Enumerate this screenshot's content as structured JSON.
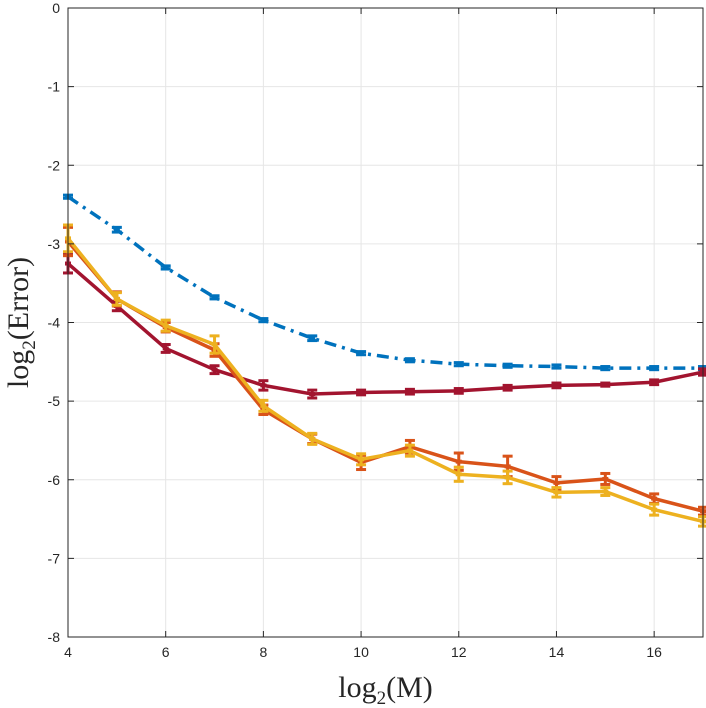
{
  "chart_data": {
    "type": "line",
    "title": "",
    "xlabel": {
      "prefix": "log",
      "sub": "2",
      "arg": "(M)"
    },
    "ylabel": {
      "prefix": "log",
      "sub": "2",
      "arg": "(Error)"
    },
    "xlim": [
      4,
      17
    ],
    "ylim": [
      -8,
      0
    ],
    "xticks": [
      4,
      6,
      8,
      10,
      12,
      14,
      16
    ],
    "yticks": [
      0,
      -1,
      -2,
      -3,
      -4,
      -5,
      -6,
      -7,
      -8
    ],
    "xtick_labels": [
      "4",
      "6",
      "8",
      "10",
      "12",
      "14",
      "16"
    ],
    "ytick_labels": [
      "0",
      "-1",
      "-2",
      "-3",
      "-4",
      "-5",
      "-6",
      "-7",
      "-8"
    ],
    "grid": true,
    "x": [
      4,
      5,
      6,
      7,
      8,
      9,
      10,
      11,
      12,
      13,
      14,
      15,
      16,
      17
    ],
    "series": [
      {
        "name": "blue-dashdot",
        "color": "#0072BD",
        "style": "dashdot",
        "values": [
          -2.4,
          -2.82,
          -3.3,
          -3.68,
          -3.97,
          -4.2,
          -4.39,
          -4.48,
          -4.53,
          -4.55,
          -4.56,
          -4.58,
          -4.58,
          -4.58
        ],
        "err": [
          0.02,
          0.03,
          0.02,
          0.02,
          0.02,
          0.03,
          0.02,
          0.02,
          0.02,
          0.02,
          0.02,
          0.02,
          0.02,
          0.02
        ]
      },
      {
        "name": "dark-red",
        "color": "#A2142F",
        "style": "solid",
        "values": [
          -3.25,
          -3.79,
          -4.33,
          -4.6,
          -4.8,
          -4.91,
          -4.89,
          -4.88,
          -4.87,
          -4.83,
          -4.8,
          -4.79,
          -4.76,
          -4.63
        ],
        "err": [
          0.12,
          0.06,
          0.05,
          0.05,
          0.06,
          0.05,
          0.03,
          0.03,
          0.03,
          0.03,
          0.03,
          0.02,
          0.03,
          0.04
        ]
      },
      {
        "name": "orange",
        "color": "#D95319",
        "style": "solid",
        "values": [
          -2.97,
          -3.7,
          -4.06,
          -4.35,
          -5.11,
          -5.48,
          -5.78,
          -5.58,
          -5.77,
          -5.83,
          -6.04,
          -5.99,
          -6.24,
          -6.4
        ],
        "err": [
          0.18,
          0.09,
          0.06,
          0.08,
          0.06,
          0.06,
          0.09,
          0.08,
          0.11,
          0.13,
          0.08,
          0.07,
          0.06,
          0.05
        ]
      },
      {
        "name": "yellow",
        "color": "#EDB120",
        "style": "solid",
        "values": [
          -2.93,
          -3.7,
          -4.04,
          -4.28,
          -5.06,
          -5.48,
          -5.74,
          -5.63,
          -5.93,
          -5.97,
          -6.16,
          -6.15,
          -6.38,
          -6.53
        ],
        "err": [
          0.17,
          0.08,
          0.07,
          0.11,
          0.07,
          0.07,
          0.07,
          0.07,
          0.09,
          0.08,
          0.06,
          0.05,
          0.07,
          0.06
        ]
      }
    ]
  }
}
